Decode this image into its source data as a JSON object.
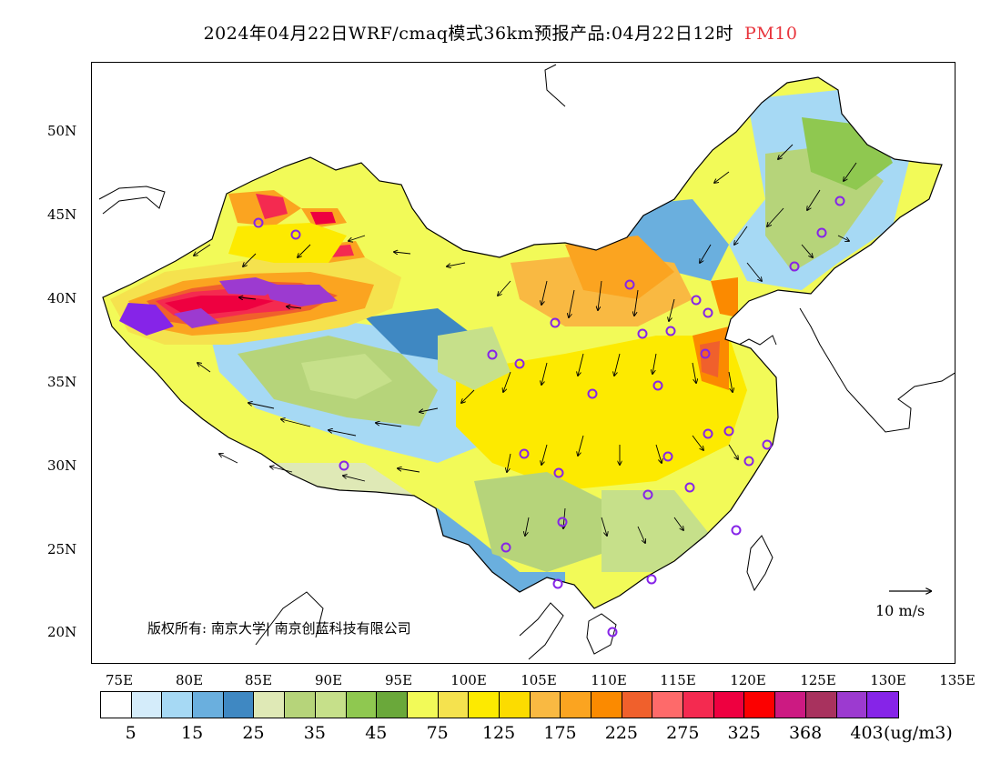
{
  "header": {
    "title": "2024年04月22日WRF/cmaq模式36km预报产品:04月22日12时",
    "pollutant": "PM10"
  },
  "map": {
    "lat_labels": [
      "50N",
      "45N",
      "40N",
      "35N",
      "30N",
      "25N",
      "20N"
    ],
    "lon_labels": [
      "75E",
      "80E",
      "85E",
      "90E",
      "95E",
      "100E",
      "105E",
      "110E",
      "115E",
      "120E",
      "125E",
      "130E",
      "135E"
    ],
    "copyright": "版权所有: 南京大学| 南京创蓝科技有限公司",
    "vector_reference": "10 m/s"
  },
  "legend": {
    "colors": [
      "#ffffff",
      "#d4ecfa",
      "#a6d9f4",
      "#6aafde",
      "#3f88c2",
      "#dfe9b6",
      "#b6d47a",
      "#c6e08a",
      "#8fc850",
      "#6aa83a",
      "#f2fa58",
      "#f5e24e",
      "#fdea00",
      "#fcdc00",
      "#f9b942",
      "#fba420",
      "#fb8a00",
      "#f0602c",
      "#fe6a6a",
      "#f42a50",
      "#ee0040",
      "#fc0000",
      "#cc1a82",
      "#a8325e",
      "#9c3ad0",
      "#8624e8"
    ],
    "labels": [
      "5",
      "15",
      "25",
      "35",
      "45",
      "75",
      "125",
      "175",
      "225",
      "275",
      "325",
      "368",
      "403"
    ],
    "units": "(ug/m3)"
  }
}
